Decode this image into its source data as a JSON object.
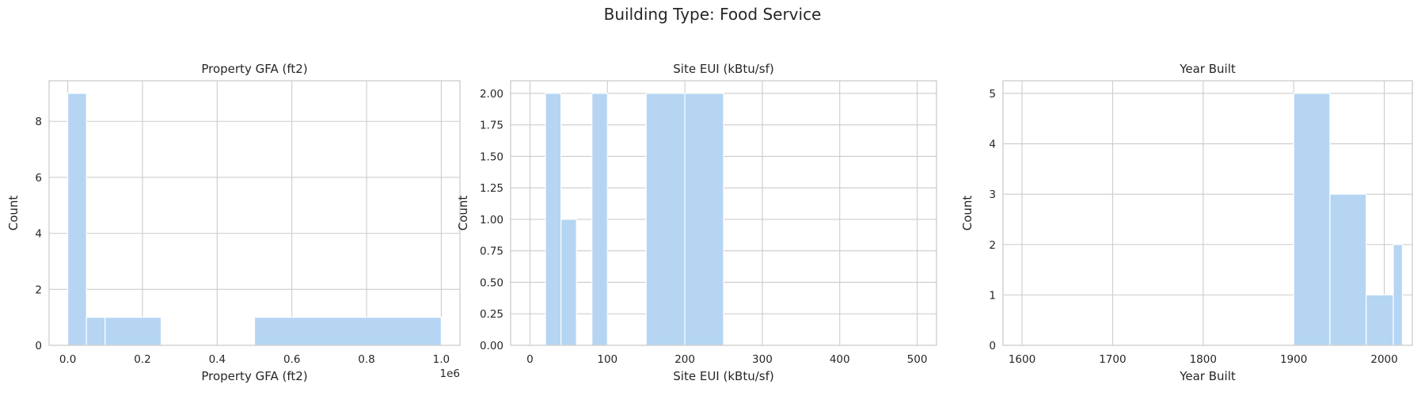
{
  "figure": {
    "suptitle": "Building Type: Food Service"
  },
  "chart_data": [
    {
      "type": "bar",
      "title": "Property GFA (ft2)",
      "xlabel": "Property GFA (ft2)",
      "ylabel": "Count",
      "offset_text": "1e6",
      "xlim": [
        -50000,
        1050000
      ],
      "ylim": [
        0,
        9.45
      ],
      "xticks": [
        0,
        200000,
        400000,
        600000,
        800000,
        1000000
      ],
      "xtick_labels": [
        "0.0",
        "0.2",
        "0.4",
        "0.6",
        "0.8",
        "1.0"
      ],
      "yticks": [
        0,
        2,
        4,
        6,
        8
      ],
      "ytick_labels": [
        "0",
        "2",
        "4",
        "6",
        "8"
      ],
      "bins": [
        {
          "x0": 0,
          "x1": 50000,
          "count": 9
        },
        {
          "x0": 50000,
          "x1": 100000,
          "count": 1
        },
        {
          "x0": 100000,
          "x1": 250000,
          "count": 1
        },
        {
          "x0": 500000,
          "x1": 1000000,
          "count": 1
        }
      ]
    },
    {
      "type": "bar",
      "title": "Site EUI (kBtu/sf)",
      "xlabel": "Site EUI (kBtu/sf)",
      "ylabel": "Count",
      "xlim": [
        -25,
        525
      ],
      "ylim": [
        0,
        2.1
      ],
      "xticks": [
        0,
        100,
        200,
        300,
        400,
        500
      ],
      "xtick_labels": [
        "0",
        "100",
        "200",
        "300",
        "400",
        "500"
      ],
      "yticks": [
        0,
        0.25,
        0.5,
        0.75,
        1.0,
        1.25,
        1.5,
        1.75,
        2.0
      ],
      "ytick_labels": [
        "0.00",
        "0.25",
        "0.50",
        "0.75",
        "1.00",
        "1.25",
        "1.50",
        "1.75",
        "2.00"
      ],
      "bins": [
        {
          "x0": 20,
          "x1": 40,
          "count": 2
        },
        {
          "x0": 40,
          "x1": 60,
          "count": 1
        },
        {
          "x0": 80,
          "x1": 100,
          "count": 2
        },
        {
          "x0": 150,
          "x1": 200,
          "count": 2
        },
        {
          "x0": 200,
          "x1": 250,
          "count": 2
        }
      ]
    },
    {
      "type": "bar",
      "title": "Year Built",
      "xlabel": "Year Built",
      "ylabel": "Count",
      "xlim": [
        1579,
        2031
      ],
      "ylim": [
        0,
        5.25
      ],
      "xticks": [
        1600,
        1700,
        1800,
        1900,
        2000
      ],
      "xtick_labels": [
        "1600",
        "1700",
        "1800",
        "1900",
        "2000"
      ],
      "yticks": [
        0,
        1,
        2,
        3,
        4,
        5
      ],
      "ytick_labels": [
        "0",
        "1",
        "2",
        "3",
        "4",
        "5"
      ],
      "bins": [
        {
          "x0": 1900,
          "x1": 1940,
          "count": 5
        },
        {
          "x0": 1940,
          "x1": 1980,
          "count": 3
        },
        {
          "x0": 1980,
          "x1": 2010,
          "count": 1
        },
        {
          "x0": 2010,
          "x1": 2020,
          "count": 2
        }
      ]
    }
  ]
}
